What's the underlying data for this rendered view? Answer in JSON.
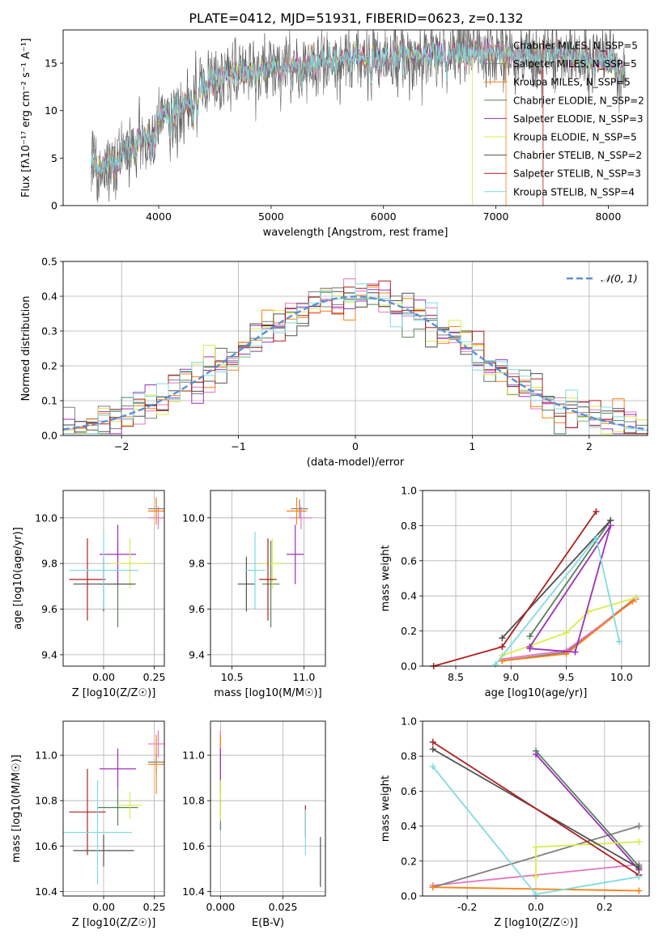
{
  "figure_title": "PLATE=0412, MJD=51931, FIBERID=0623, z=0.132",
  "colors": {
    "Chabrier MILES": "#e377c2",
    "Salpeter MILES": "#7f7f7f",
    "Kroupa MILES": "#ff7f0e",
    "Chabrier ELODIE": "#55825a",
    "Salpeter ELODIE": "#9b30b8",
    "Kroupa ELODIE": "#d9ec4a",
    "Chabrier STELIB": "#505050",
    "Salpeter STELIB": "#b01f1f",
    "Kroupa STELIB": "#7fdbe0",
    "normal_curve": "#5b8fd6"
  },
  "chart_data": [
    {
      "id": "spectrum",
      "type": "line",
      "xlabel": "wavelength [Angstrom, rest frame]",
      "ylabel": "Flux [fλ10⁻¹⁷ erg cm⁻² s⁻¹ A⁻¹]",
      "xlim": [
        3150,
        8350
      ],
      "ylim": [
        0,
        18.5
      ],
      "xticks": [
        4000,
        5000,
        6000,
        7000,
        8000
      ],
      "yticks": [
        0,
        5,
        10,
        15
      ],
      "legend_position": "upper right",
      "series": [
        {
          "name": "Chabrier MILES, N_SSP=5",
          "key": "Chabrier MILES"
        },
        {
          "name": "Salpeter MILES, N_SSP=5",
          "key": "Salpeter MILES"
        },
        {
          "name": "Kroupa MILES, N_SSP=5",
          "key": "Kroupa MILES"
        },
        {
          "name": "Chabrier ELODIE, N_SSP=2",
          "key": "Chabrier ELODIE"
        },
        {
          "name": "Salpeter ELODIE, N_SSP=3",
          "key": "Salpeter ELODIE"
        },
        {
          "name": "Kroupa ELODIE, N_SSP=5",
          "key": "Kroupa ELODIE"
        },
        {
          "name": "Chabrier STELIB, N_SSP=2",
          "key": "Chabrier STELIB"
        },
        {
          "name": "Salpeter STELIB, N_SSP=3",
          "key": "Salpeter STELIB"
        },
        {
          "name": "Kroupa STELIB, N_SSP=4",
          "key": "Kroupa STELIB"
        }
      ],
      "continuum": {
        "x": [
          3400,
          3500,
          3600,
          3700,
          3800,
          3900,
          4000,
          4100,
          4200,
          4300,
          4400,
          4500,
          4700,
          5000,
          5300,
          5600,
          6000,
          6500,
          7000,
          7500,
          8000,
          8150
        ],
        "y": [
          4.3,
          4.1,
          4.6,
          5.6,
          6.6,
          7.6,
          9.0,
          9.7,
          10.3,
          11.0,
          12.4,
          13.3,
          14.0,
          14.6,
          15.0,
          15.4,
          15.7,
          16.0,
          16.0,
          15.8,
          15.0,
          14.2
        ]
      }
    },
    {
      "id": "residuals",
      "type": "step",
      "xlabel": "(data-model)/error",
      "ylabel": "Normed distribution",
      "xlim": [
        -2.5,
        2.5
      ],
      "ylim": [
        0,
        0.5
      ],
      "xticks": [
        -2,
        -1,
        0,
        1,
        2
      ],
      "yticks": [
        0.0,
        0.1,
        0.2,
        0.3,
        0.4,
        0.5
      ],
      "grid": true,
      "legend_position": "upper right",
      "legend": "𝒩(0, 1)",
      "bin_width": 0.1,
      "x_start": -2.5
    },
    {
      "id": "age_vs_Z",
      "type": "errorbar",
      "xlabel": "Z [log10(Z/Z☉)]",
      "ylabel": "age  [log10(age/yr)]",
      "xlim": [
        -0.2,
        0.3
      ],
      "ylim": [
        9.35,
        10.12
      ],
      "xticks": [
        0.0,
        0.25
      ],
      "yticks": [
        9.4,
        9.6,
        9.8,
        10.0
      ],
      "grid": true,
      "points": [
        {
          "key": "Chabrier MILES",
          "x": 0.27,
          "y": 10.0,
          "xerr": 0.05,
          "yerr": 0.05
        },
        {
          "key": "Salpeter MILES",
          "x": 0.26,
          "y": 10.04,
          "xerr": 0.04,
          "yerr": 0.04
        },
        {
          "key": "Kroupa MILES",
          "x": 0.26,
          "y": 10.03,
          "xerr": 0.04,
          "yerr": 0.06
        },
        {
          "key": "Chabrier ELODIE",
          "x": 0.07,
          "y": 9.71,
          "xerr": 0.09,
          "yerr": 0.19
        },
        {
          "key": "Salpeter ELODIE",
          "x": 0.07,
          "y": 9.84,
          "xerr": 0.09,
          "yerr": 0.13
        },
        {
          "key": "Kroupa ELODIE",
          "x": 0.13,
          "y": 9.8,
          "xerr": 0.1,
          "yerr": 0.11
        },
        {
          "key": "Chabrier STELIB",
          "x": 0.0,
          "y": 9.71,
          "xerr": 0.15,
          "yerr": 0.12
        },
        {
          "key": "Salpeter STELIB",
          "x": -0.08,
          "y": 9.73,
          "xerr": 0.09,
          "yerr": 0.18
        },
        {
          "key": "Kroupa STELIB",
          "x": 0.0,
          "y": 9.77,
          "xerr": 0.17,
          "yerr": 0.17
        }
      ]
    },
    {
      "id": "age_vs_mass",
      "type": "errorbar",
      "xlabel": "mass [log10(M/M☉)]",
      "ylabel": "",
      "xlim": [
        10.35,
        11.15
      ],
      "ylim": [
        9.35,
        10.12
      ],
      "xticks": [
        10.5,
        11.0
      ],
      "yticks": [
        9.4,
        9.6,
        9.8,
        10.0
      ],
      "grid": true,
      "points": [
        {
          "key": "Chabrier MILES",
          "x": 10.98,
          "y": 10.0,
          "xerr": 0.08,
          "yerr": 0.05
        },
        {
          "key": "Salpeter MILES",
          "x": 10.97,
          "y": 10.04,
          "xerr": 0.06,
          "yerr": 0.04
        },
        {
          "key": "Kroupa MILES",
          "x": 10.95,
          "y": 10.03,
          "xerr": 0.07,
          "yerr": 0.06
        },
        {
          "key": "Chabrier ELODIE",
          "x": 10.77,
          "y": 9.71,
          "xerr": 0.06,
          "yerr": 0.19
        },
        {
          "key": "Salpeter ELODIE",
          "x": 10.94,
          "y": 9.84,
          "xerr": 0.06,
          "yerr": 0.13
        },
        {
          "key": "Kroupa ELODIE",
          "x": 10.78,
          "y": 9.8,
          "xerr": 0.07,
          "yerr": 0.11
        },
        {
          "key": "Chabrier STELIB",
          "x": 10.6,
          "y": 9.71,
          "xerr": 0.06,
          "yerr": 0.12
        },
        {
          "key": "Salpeter STELIB",
          "x": 10.75,
          "y": 9.73,
          "xerr": 0.06,
          "yerr": 0.18
        },
        {
          "key": "Kroupa STELIB",
          "x": 10.66,
          "y": 9.77,
          "xerr": 0.07,
          "yerr": 0.17
        }
      ]
    },
    {
      "id": "weight_vs_age",
      "type": "line",
      "xlabel": "age  [log10(age/yr)]",
      "ylabel": "mass weight",
      "xlim": [
        8.2,
        10.25
      ],
      "ylim": [
        0,
        1.0
      ],
      "xticks": [
        8.5,
        9.0,
        9.5,
        10.0
      ],
      "yticks": [
        0.0,
        0.2,
        0.4,
        0.6,
        0.8,
        1.0
      ],
      "grid": true,
      "series": [
        {
          "key": "Salpeter MILES",
          "x": [
            8.92,
            9.5,
            10.13
          ],
          "y": [
            0.03,
            0.08,
            0.39
          ]
        },
        {
          "key": "Chabrier MILES",
          "x": [
            8.92,
            9.5,
            10.13
          ],
          "y": [
            0.04,
            0.09,
            0.38
          ]
        },
        {
          "key": "Kroupa MILES",
          "x": [
            8.92,
            9.5,
            10.1
          ],
          "y": [
            0.03,
            0.07,
            0.37
          ]
        },
        {
          "key": "Kroupa ELODIE",
          "x": [
            8.92,
            9.5,
            9.7,
            10.13
          ],
          "y": [
            0.06,
            0.19,
            0.31,
            0.39
          ]
        },
        {
          "key": "Salpeter ELODIE",
          "x": [
            9.17,
            9.58,
            9.9,
            9.17
          ],
          "y": [
            0.1,
            0.08,
            0.8,
            0.11
          ]
        },
        {
          "key": "Chabrier ELODIE",
          "x": [
            9.17,
            9.9
          ],
          "y": [
            0.17,
            0.83
          ]
        },
        {
          "key": "Chabrier STELIB",
          "x": [
            8.92,
            9.9
          ],
          "y": [
            0.16,
            0.83
          ]
        },
        {
          "key": "Salpeter STELIB",
          "x": [
            8.3,
            8.92,
            9.77
          ],
          "y": [
            0.0,
            0.11,
            0.88
          ]
        },
        {
          "key": "Kroupa STELIB",
          "x": [
            8.86,
            9.77,
            9.98
          ],
          "y": [
            0.01,
            0.73,
            0.14
          ]
        }
      ]
    },
    {
      "id": "mass_vs_Z",
      "type": "errorbar",
      "xlabel": "Z [log10(Z/Z☉)]",
      "ylabel": "mass [log10(M/M☉)]",
      "xlim": [
        -0.2,
        0.3
      ],
      "ylim": [
        10.38,
        11.15
      ],
      "xticks": [
        0.0,
        0.25
      ],
      "yticks": [
        10.4,
        10.6,
        10.8,
        11.0
      ],
      "grid": true,
      "points": [
        {
          "key": "Chabrier MILES",
          "x": 0.27,
          "y": 11.05,
          "xerr": 0.05,
          "yerr": 0.06
        },
        {
          "key": "Salpeter MILES",
          "x": 0.26,
          "y": 10.97,
          "xerr": 0.04,
          "yerr": 0.04
        },
        {
          "key": "Kroupa MILES",
          "x": 0.26,
          "y": 10.96,
          "xerr": 0.04,
          "yerr": 0.13
        },
        {
          "key": "Chabrier ELODIE",
          "x": 0.07,
          "y": 10.77,
          "xerr": 0.1,
          "yerr": 0.08
        },
        {
          "key": "Salpeter ELODIE",
          "x": 0.07,
          "y": 10.94,
          "xerr": 0.09,
          "yerr": 0.09
        },
        {
          "key": "Kroupa ELODIE",
          "x": 0.13,
          "y": 10.78,
          "xerr": 0.06,
          "yerr": 0.06
        },
        {
          "key": "Chabrier STELIB",
          "x": 0.0,
          "y": 10.58,
          "xerr": 0.15,
          "yerr": 0.07
        },
        {
          "key": "Salpeter STELIB",
          "x": -0.08,
          "y": 10.75,
          "xerr": 0.09,
          "yerr": 0.19
        },
        {
          "key": "Kroupa STELIB",
          "x": -0.03,
          "y": 10.66,
          "xerr": 0.17,
          "yerr": 0.23
        }
      ]
    },
    {
      "id": "mass_vs_ebv",
      "type": "errorbar",
      "xlabel": "E(B-V)",
      "ylabel": "",
      "xlim": [
        -0.004,
        0.042
      ],
      "ylim": [
        10.38,
        11.15
      ],
      "xticks": [
        0.0,
        0.025
      ],
      "yticks": [
        10.4,
        10.6,
        10.8,
        11.0
      ],
      "grid": true,
      "points": [
        {
          "key": "Chabrier MILES",
          "x": 0.0,
          "y": 11.05,
          "xerr": 0,
          "yerr": 0.06
        },
        {
          "key": "Salpeter MILES",
          "x": 0.0,
          "y": 10.97,
          "xerr": 0,
          "yerr": 0.04
        },
        {
          "key": "Kroupa MILES",
          "x": 0.0,
          "y": 10.96,
          "xerr": 0,
          "yerr": 0.13
        },
        {
          "key": "Chabrier ELODIE",
          "x": 0.0,
          "y": 10.77,
          "xerr": 0,
          "yerr": 0.1
        },
        {
          "key": "Salpeter ELODIE",
          "x": 0.0,
          "y": 10.94,
          "xerr": 0,
          "yerr": 0.09
        },
        {
          "key": "Kroupa ELODIE",
          "x": 0.0,
          "y": 10.8,
          "xerr": 0,
          "yerr": 0.09
        },
        {
          "key": "Chabrier STELIB",
          "x": 0.04,
          "y": 10.53,
          "xerr": 0,
          "yerr": 0.11
        },
        {
          "key": "Salpeter STELIB",
          "x": 0.034,
          "y": 10.71,
          "xerr": 0,
          "yerr": 0.07
        },
        {
          "key": "Kroupa STELIB",
          "x": 0.034,
          "y": 10.66,
          "xerr": 0,
          "yerr": 0.1
        }
      ]
    },
    {
      "id": "weight_vs_Z",
      "type": "line",
      "xlabel": "Z [log10(Z/Z☉)]",
      "ylabel": "mass weight",
      "xlim": [
        -0.33,
        0.33
      ],
      "ylim": [
        0,
        1.0
      ],
      "xticks": [
        -0.2,
        0.0,
        0.2
      ],
      "yticks": [
        0.0,
        0.2,
        0.4,
        0.6,
        0.8,
        1.0
      ],
      "grid": true,
      "series": [
        {
          "key": "Chabrier MILES",
          "x": [
            -0.3,
            0.3
          ],
          "y": [
            0.06,
            0.18
          ]
        },
        {
          "key": "Salpeter MILES",
          "x": [
            -0.3,
            0.3
          ],
          "y": [
            0.05,
            0.4
          ]
        },
        {
          "key": "Kroupa MILES",
          "x": [
            -0.3,
            0.3
          ],
          "y": [
            0.05,
            0.03
          ]
        },
        {
          "key": "Chabrier ELODIE",
          "x": [
            0.0,
            0.3
          ],
          "y": [
            0.83,
            0.17
          ]
        },
        {
          "key": "Salpeter ELODIE",
          "x": [
            0.0,
            0.3
          ],
          "y": [
            0.81,
            0.15
          ]
        },
        {
          "key": "Kroupa ELODIE",
          "x": [
            0.0,
            0.0,
            0.3
          ],
          "y": [
            0.11,
            0.28,
            0.31
          ]
        },
        {
          "key": "Chabrier STELIB",
          "x": [
            -0.3,
            0.3
          ],
          "y": [
            0.84,
            0.16
          ]
        },
        {
          "key": "Salpeter STELIB",
          "x": [
            -0.3,
            0.3
          ],
          "y": [
            0.88,
            0.12
          ]
        },
        {
          "key": "Kroupa STELIB",
          "x": [
            -0.3,
            0.0,
            0.3
          ],
          "y": [
            0.74,
            0.01,
            0.11
          ]
        }
      ]
    }
  ]
}
